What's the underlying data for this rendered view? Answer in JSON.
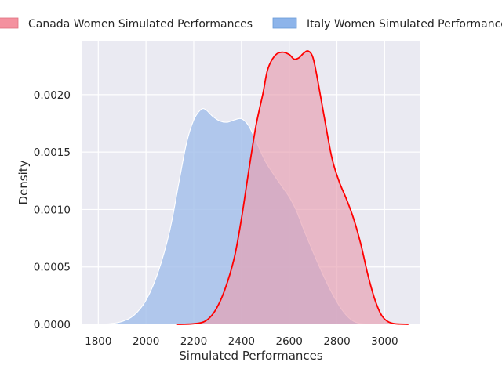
{
  "chart_data": {
    "type": "area",
    "xlabel": "Simulated Performances",
    "ylabel": "Density",
    "xlim": [
      1730,
      3150
    ],
    "ylim": [
      0,
      0.00247
    ],
    "xticks": [
      1800,
      2000,
      2200,
      2400,
      2600,
      2800,
      3000
    ],
    "xtick_labels": [
      "1800",
      "2000",
      "2200",
      "2400",
      "2600",
      "2800",
      "3000"
    ],
    "yticks": [
      0,
      0.0005,
      0.001,
      0.0015,
      0.002
    ],
    "ytick_labels": [
      "0.0000",
      "0.0005",
      "0.0010",
      "0.0015",
      "0.0020"
    ],
    "grid": true,
    "legend_position": "top",
    "series": [
      {
        "name": "Canada Women Simulated Performances",
        "fill_color": "#e8a0b3",
        "legend_color": "#f4919f",
        "line_color": "#ff0000",
        "points": [
          [
            2130,
            0
          ],
          [
            2200,
            5e-06
          ],
          [
            2250,
            3e-05
          ],
          [
            2290,
            0.00012
          ],
          [
            2330,
            0.0003
          ],
          [
            2370,
            0.00058
          ],
          [
            2400,
            0.00092
          ],
          [
            2430,
            0.00133
          ],
          [
            2460,
            0.00172
          ],
          [
            2490,
            0.00201
          ],
          [
            2510,
            0.00222
          ],
          [
            2540,
            0.00234
          ],
          [
            2570,
            0.00237
          ],
          [
            2600,
            0.00235
          ],
          [
            2620,
            0.00231
          ],
          [
            2640,
            0.00232
          ],
          [
            2660,
            0.00236
          ],
          [
            2680,
            0.00238
          ],
          [
            2700,
            0.00232
          ],
          [
            2720,
            0.00212
          ],
          [
            2750,
            0.00177
          ],
          [
            2780,
            0.00144
          ],
          [
            2810,
            0.00124
          ],
          [
            2840,
            0.00109
          ],
          [
            2870,
            0.00092
          ],
          [
            2900,
            0.0007
          ],
          [
            2930,
            0.00043
          ],
          [
            2960,
            0.00021
          ],
          [
            2990,
            7e-05
          ],
          [
            3030,
            1e-05
          ],
          [
            3100,
            0
          ]
        ]
      },
      {
        "name": "Italy Women Simulated Performances",
        "fill_color": "#a4c0ea",
        "legend_color": "#8db4ea",
        "line_color": "#ffffff",
        "points": [
          [
            1790,
            0
          ],
          [
            1850,
            6e-06
          ],
          [
            1900,
            2.5e-05
          ],
          [
            1950,
            8e-05
          ],
          [
            2000,
            0.00021
          ],
          [
            2050,
            0.00045
          ],
          [
            2100,
            0.00082
          ],
          [
            2140,
            0.00126
          ],
          [
            2170,
            0.00158
          ],
          [
            2200,
            0.00178
          ],
          [
            2230,
            0.00187
          ],
          [
            2250,
            0.00187
          ],
          [
            2280,
            0.00181
          ],
          [
            2310,
            0.00177
          ],
          [
            2340,
            0.00176
          ],
          [
            2370,
            0.00178
          ],
          [
            2400,
            0.00179
          ],
          [
            2430,
            0.00173
          ],
          [
            2460,
            0.0016
          ],
          [
            2500,
            0.00142
          ],
          [
            2540,
            0.00129
          ],
          [
            2570,
            0.0012
          ],
          [
            2600,
            0.00111
          ],
          [
            2630,
            0.00099
          ],
          [
            2660,
            0.00083
          ],
          [
            2700,
            0.00063
          ],
          [
            2740,
            0.00044
          ],
          [
            2780,
            0.00027
          ],
          [
            2820,
            0.00013
          ],
          [
            2860,
            4e-05
          ],
          [
            2900,
            7e-06
          ],
          [
            2960,
            0
          ]
        ]
      }
    ]
  }
}
